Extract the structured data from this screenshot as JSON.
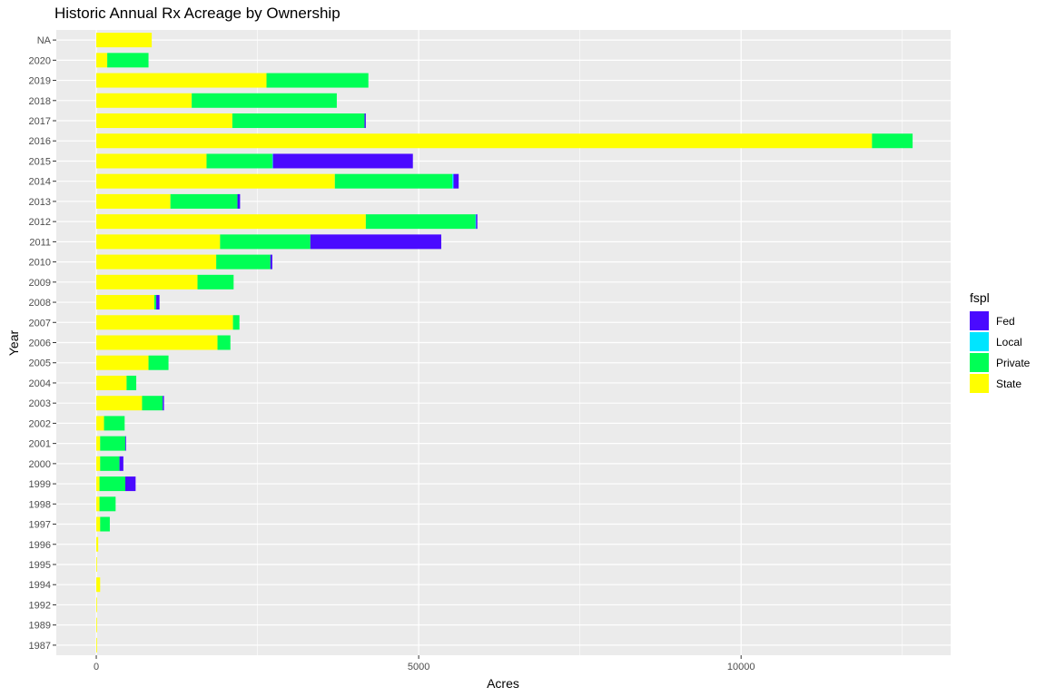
{
  "chart_data": {
    "type": "bar",
    "orientation": "horizontal",
    "stacked": true,
    "title": "Historic Annual Rx Acreage by Ownership",
    "xlabel": "Acres",
    "ylabel": "Year",
    "xlim": [
      -620,
      13250
    ],
    "xticks": [
      0,
      5000,
      10000
    ],
    "grid": true,
    "legend_title": "fspl",
    "legend_position": "right",
    "categories": [
      "1987",
      "1989",
      "1992",
      "1994",
      "1995",
      "1996",
      "1997",
      "1998",
      "1999",
      "2000",
      "2001",
      "2002",
      "2003",
      "2004",
      "2005",
      "2006",
      "2007",
      "2008",
      "2009",
      "2010",
      "2011",
      "2012",
      "2013",
      "2014",
      "2015",
      "2016",
      "2017",
      "2018",
      "2019",
      "2020",
      "NA"
    ],
    "series": [
      {
        "name": "State",
        "color": "#FFFF00",
        "values": [
          10,
          10,
          10,
          60,
          10,
          30,
          60,
          50,
          50,
          60,
          60,
          120,
          710,
          470,
          810,
          1880,
          2120,
          900,
          1570,
          1860,
          1920,
          4180,
          1150,
          3700,
          1710,
          12030,
          2110,
          1480,
          2640,
          170,
          860
        ]
      },
      {
        "name": "Private",
        "color": "#00FF55",
        "values": [
          0,
          0,
          0,
          0,
          0,
          0,
          150,
          250,
          400,
          300,
          390,
          320,
          320,
          150,
          310,
          200,
          100,
          30,
          560,
          840,
          1400,
          1700,
          1040,
          1820,
          1020,
          630,
          2050,
          2250,
          1580,
          640,
          0
        ]
      },
      {
        "name": "Local",
        "color": "#00E5FF",
        "values": [
          0,
          0,
          0,
          0,
          0,
          0,
          0,
          0,
          0,
          0,
          0,
          0,
          0,
          0,
          0,
          0,
          0,
          0,
          0,
          0,
          0,
          10,
          0,
          20,
          10,
          0,
          0,
          0,
          0,
          0,
          0
        ]
      },
      {
        "name": "Fed",
        "color": "#4A0AFF",
        "values": [
          0,
          0,
          0,
          0,
          0,
          0,
          0,
          0,
          160,
          60,
          10,
          0,
          20,
          0,
          0,
          0,
          0,
          50,
          0,
          30,
          2030,
          20,
          40,
          80,
          2170,
          0,
          20,
          0,
          0,
          0,
          0
        ]
      }
    ],
    "legend": [
      {
        "name": "Fed",
        "color": "#4A0AFF"
      },
      {
        "name": "Local",
        "color": "#00E5FF"
      },
      {
        "name": "Private",
        "color": "#00FF55"
      },
      {
        "name": "State",
        "color": "#FFFF00"
      }
    ]
  }
}
